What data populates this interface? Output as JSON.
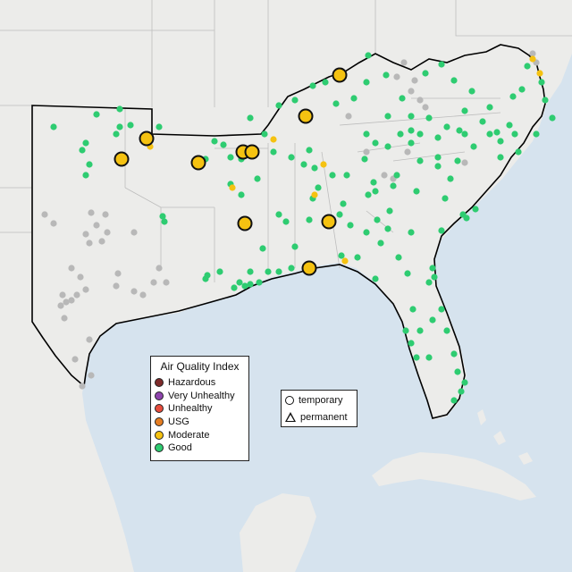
{
  "colors": {
    "ocean": "#d6e3ee",
    "land": "#ececea",
    "region_fill": "#e9e8e6",
    "hazardous": "#7e2b2b",
    "very_unhealthy": "#8e44ad",
    "unhealthy": "#e74c3c",
    "usg": "#e67e22",
    "moderate": "#f5c211",
    "good": "#2ecc71",
    "no_data": "#b8b8b8"
  },
  "legend": {
    "title": "Air Quality Index",
    "items": [
      {
        "label": "Hazardous",
        "color": "#7e2b2b"
      },
      {
        "label": "Very Unhealthy",
        "color": "#8e44ad"
      },
      {
        "label": "Unhealthy",
        "color": "#e74c3c"
      },
      {
        "label": "USG",
        "color": "#e67e22"
      },
      {
        "label": "Moderate",
        "color": "#f5c211"
      },
      {
        "label": "Good",
        "color": "#2ecc71"
      }
    ]
  },
  "monitor_types": {
    "items": [
      {
        "label": "temporary",
        "icon": "circle-outline-icon"
      },
      {
        "label": "permanent",
        "icon": "triangle-outline-icon"
      }
    ]
  },
  "moderate_stations_count": 15
}
